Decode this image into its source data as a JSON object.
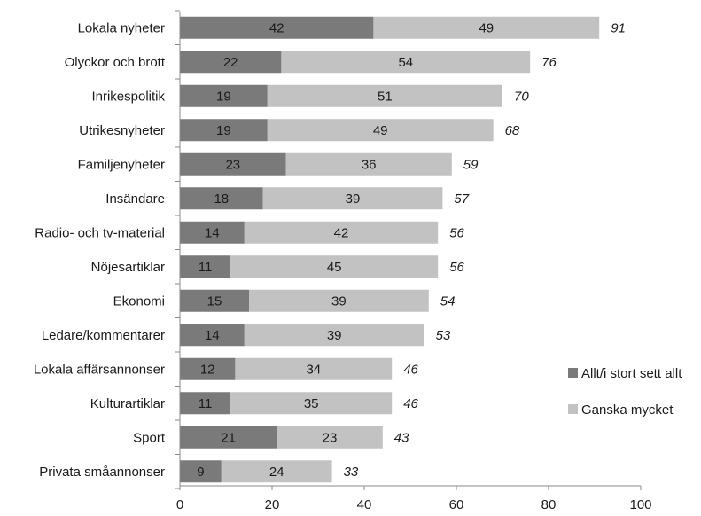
{
  "chart_data": {
    "type": "bar",
    "orientation": "horizontal",
    "stacked": true,
    "categories": [
      "Lokala nyheter",
      "Olyckor och brott",
      "Inrikespolitik",
      "Utrikesnyheter",
      "Familjenyheter",
      "Insändare",
      "Radio- och tv-material",
      "Nöjesartiklar",
      "Ekonomi",
      "Ledare/kommentarer",
      "Lokala affärsannonser",
      "Kulturartiklar",
      "Sport",
      "Privata småannonser"
    ],
    "series": [
      {
        "name": "Allt/i stort sett allt",
        "color": "#7a7a7a",
        "values": [
          42,
          22,
          19,
          19,
          23,
          18,
          14,
          11,
          15,
          14,
          12,
          11,
          21,
          9
        ]
      },
      {
        "name": "Ganska mycket",
        "color": "#c2c2c2",
        "values": [
          49,
          54,
          51,
          49,
          36,
          39,
          42,
          45,
          39,
          39,
          34,
          35,
          23,
          24
        ]
      }
    ],
    "totals": [
      91,
      76,
      70,
      68,
      59,
      57,
      56,
      56,
      54,
      53,
      46,
      46,
      43,
      33
    ],
    "xlim": [
      0,
      100
    ],
    "xticks": [
      0,
      20,
      40,
      60,
      80,
      100
    ],
    "grid": false,
    "legend_position": "right"
  }
}
